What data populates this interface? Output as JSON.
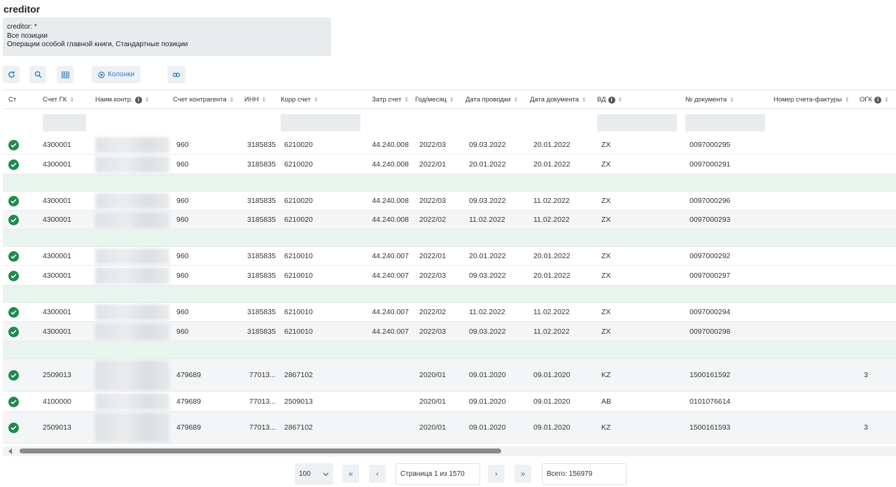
{
  "page": {
    "title": "creditor"
  },
  "filter": {
    "line1": "creditor: *",
    "line2": "Все позиции",
    "line3": "Операции особой главной книги, Стандартные позиции"
  },
  "toolbar": {
    "refresh_icon": "refresh-icon",
    "search_icon": "search-icon",
    "table_icon": "table-icon",
    "columns_label": "Колонки",
    "link_icon": "link-icon"
  },
  "columns": {
    "st": "Ст",
    "gl": "Счет ГК",
    "name": "Наим.контр.",
    "cp": "Счет контрагента",
    "inn": "ИНН",
    "corr": "Корр счет",
    "cost": "Затр счет",
    "ym": "Год/месяц",
    "post": "Дата проводки",
    "doc": "Дата документа",
    "vd": "ВД",
    "docno": "№ документа",
    "inv": "Номер счета-фактуры",
    "ogk": "ОГК"
  },
  "rows": [
    {
      "gl": "4300001",
      "cp": "960",
      "inn": "3185835",
      "corr": "6210020",
      "cost": "44.240.008",
      "ym": "2022/03",
      "post": "09.03.2022",
      "doc": "20.01.2022",
      "vd": "ZX",
      "docno": "0097000295",
      "ogk": ""
    },
    {
      "gl": "4300001",
      "cp": "960",
      "inn": "3185835",
      "corr": "6210020",
      "cost": "44.240.008",
      "ym": "2022/01",
      "post": "20.01.2022",
      "doc": "20.01.2022",
      "vd": "ZX",
      "docno": "0097000291",
      "ogk": ""
    },
    {
      "gl": "4300001",
      "cp": "960",
      "inn": "3185835",
      "corr": "6210020",
      "cost": "44.240.008",
      "ym": "2022/03",
      "post": "09.03.2022",
      "doc": "11.02.2022",
      "vd": "ZX",
      "docno": "0097000296",
      "ogk": ""
    },
    {
      "gl": "4300001",
      "cp": "960",
      "inn": "3185835",
      "corr": "6210020",
      "cost": "44.240.008",
      "ym": "2022/02",
      "post": "11.02.2022",
      "doc": "11.02.2022",
      "vd": "ZX",
      "docno": "0097000293",
      "ogk": ""
    },
    {
      "gl": "4300001",
      "cp": "960",
      "inn": "3185835",
      "corr": "6210010",
      "cost": "44.240.007",
      "ym": "2022/01",
      "post": "20.01.2022",
      "doc": "20.01.2022",
      "vd": "ZX",
      "docno": "0097000292",
      "ogk": ""
    },
    {
      "gl": "4300001",
      "cp": "960",
      "inn": "3185835",
      "corr": "6210010",
      "cost": "44.240.007",
      "ym": "2022/03",
      "post": "09.03.2022",
      "doc": "20.01.2022",
      "vd": "ZX",
      "docno": "0097000297",
      "ogk": ""
    },
    {
      "gl": "4300001",
      "cp": "960",
      "inn": "3185835",
      "corr": "6210010",
      "cost": "44.240.007",
      "ym": "2022/02",
      "post": "11.02.2022",
      "doc": "11.02.2022",
      "vd": "ZX",
      "docno": "0097000294",
      "ogk": ""
    },
    {
      "gl": "4300001",
      "cp": "960",
      "inn": "3185835",
      "corr": "6210010",
      "cost": "44.240.007",
      "ym": "2022/03",
      "post": "09.03.2022",
      "doc": "11.02.2022",
      "vd": "ZX",
      "docno": "0097000298",
      "ogk": ""
    },
    {
      "gl": "2509013",
      "cp": "479689",
      "inn": "77013...",
      "corr": "2867102",
      "cost": "",
      "ym": "2020/01",
      "post": "09.01.2020",
      "doc": "09.01.2020",
      "vd": "KZ",
      "docno": "1500161592",
      "ogk": "3"
    },
    {
      "gl": "4100000",
      "cp": "479689",
      "inn": "77013...",
      "corr": "2509013",
      "cost": "",
      "ym": "2020/01",
      "post": "09.01.2020",
      "doc": "09.01.2020",
      "vd": "AB",
      "docno": "0101076614",
      "ogk": ""
    },
    {
      "gl": "2509013",
      "cp": "479689",
      "inn": "77013...",
      "corr": "2867102",
      "cost": "",
      "ym": "2020/01",
      "post": "09.01.2020",
      "doc": "09.01.2020",
      "vd": "KZ",
      "docno": "1500161593",
      "ogk": "3"
    }
  ],
  "pager": {
    "page_size": "100",
    "first": "«",
    "prev": "‹",
    "page_label": "Страница 1 из 1570",
    "next": "›",
    "last": "»",
    "total": "Всего: 156979"
  },
  "colors": {
    "accent": "#2e7fc1",
    "status_ok": "#1f8a4c",
    "group_row": "#e9f4ef"
  }
}
